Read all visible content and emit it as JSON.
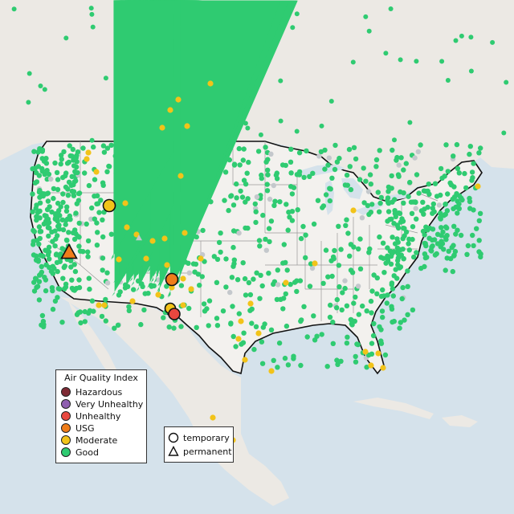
{
  "map": {
    "background": "#dfe8ee",
    "land_color": "#ece9e4",
    "us_color": "#f3f1ee",
    "water_color": "#d5e2eb"
  },
  "aqi_legend": {
    "title": "Air Quality Index",
    "items": [
      {
        "label": "Hazardous",
        "color": "#7e2a34"
      },
      {
        "label": "Very Unhealthy",
        "color": "#8f5fb0"
      },
      {
        "label": "Unhealthy",
        "color": "#e8473f"
      },
      {
        "label": "USG",
        "color": "#f07d1a"
      },
      {
        "label": "Moderate",
        "color": "#f2c319"
      },
      {
        "label": "Good",
        "color": "#2fcb71"
      }
    ]
  },
  "type_legend": {
    "items": [
      {
        "label": "temporary",
        "shape": "circle-icon"
      },
      {
        "label": "permanent",
        "shape": "triangle-icon"
      }
    ]
  }
}
